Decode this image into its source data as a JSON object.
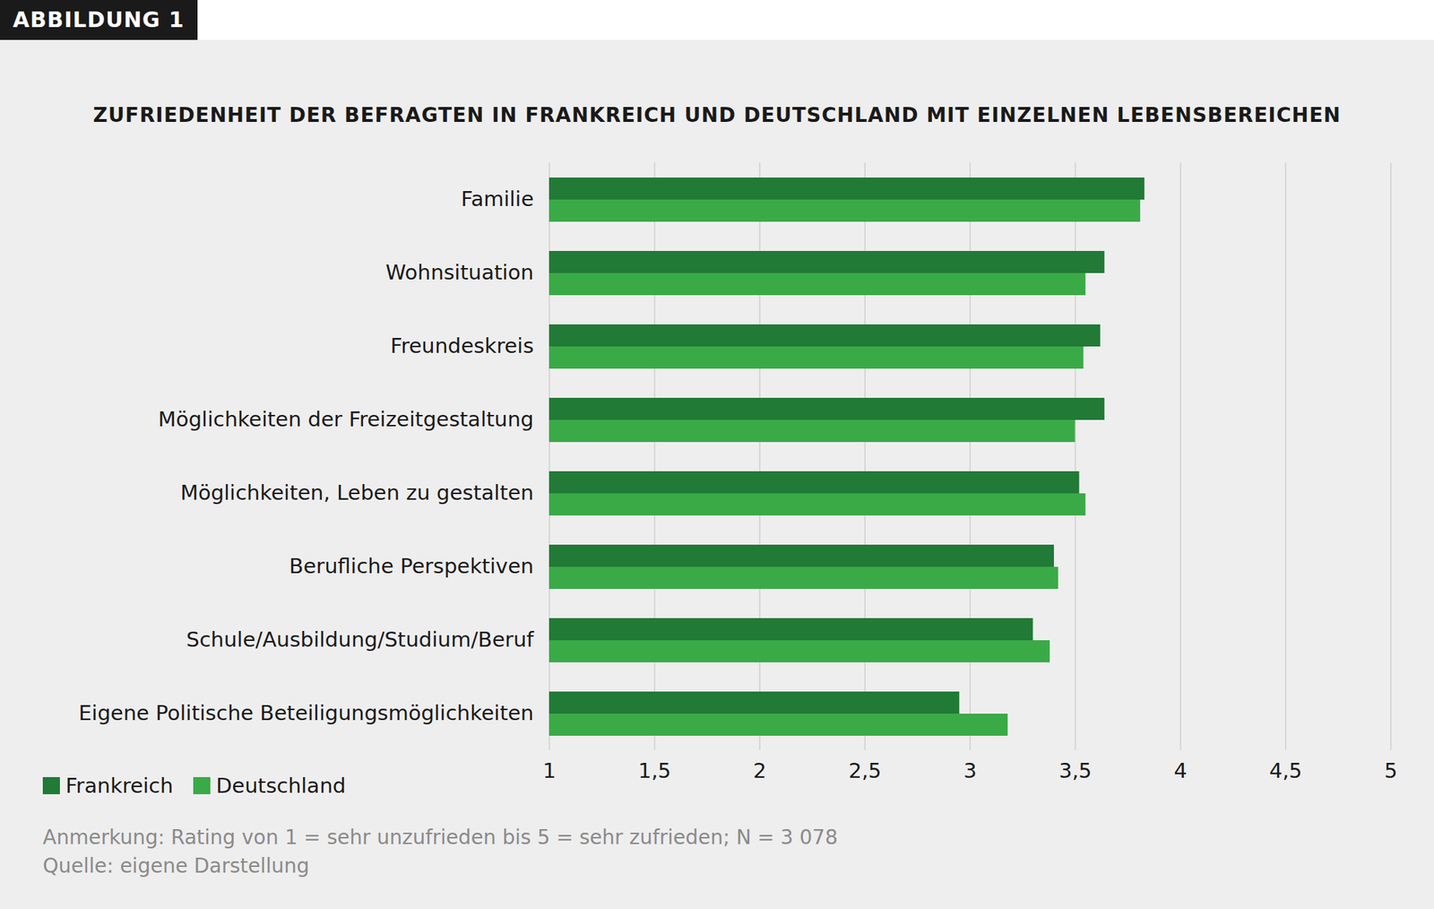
{
  "chart_data": {
    "type": "bar",
    "orientation": "horizontal",
    "figure_label": "ABBILDUNG 1",
    "title": "ZUFRIEDENHEIT DER BEFRAGTEN IN FRANKREICH UND DEUTSCHLAND MIT EINZELNEN LEBENSBEREICHEN",
    "categories": [
      "Familie",
      "Wohnsituation",
      "Freundeskreis",
      "Möglichkeiten der Freizeitgestaltung",
      "Möglichkeiten, Leben zu gestalten",
      "Berufliche Perspektiven",
      "Schule/Ausbildung/Studium/Beruf",
      "Eigene Politische Beteiligungsmöglichkeiten"
    ],
    "series": [
      {
        "name": "Frankreich",
        "color": "#217a35",
        "values": [
          3.83,
          3.64,
          3.62,
          3.64,
          3.52,
          3.4,
          3.3,
          2.95
        ]
      },
      {
        "name": "Deutschland",
        "color": "#3aaa47",
        "values": [
          3.81,
          3.55,
          3.54,
          3.5,
          3.55,
          3.42,
          3.38,
          3.18
        ]
      }
    ],
    "xlim": [
      1,
      5
    ],
    "xticks": [
      1,
      {
        "value": 1.5,
        "label": "1,5"
      },
      2,
      {
        "value": 2.5,
        "label": "2,5"
      },
      3,
      {
        "value": 3.5,
        "label": "3,5"
      },
      4,
      {
        "value": 4.5,
        "label": "4,5"
      },
      5
    ],
    "grid": true,
    "legend": "bottom-left",
    "annotations": [
      "Anmerkung: Rating von 1 = sehr unzufrieden bis 5 = sehr zufrieden; N = 3 078",
      "Quelle: eigene Darstellung"
    ]
  }
}
